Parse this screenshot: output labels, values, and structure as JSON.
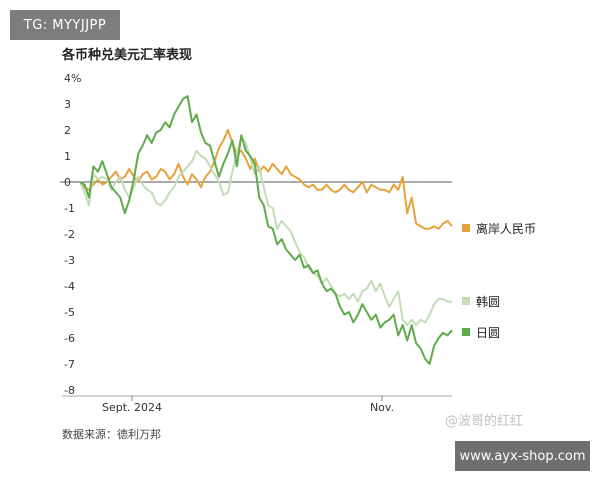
{
  "watermarks": {
    "top": "TG: MYYJJPP",
    "middle": "@波哥的红红",
    "bottom": "www.ayx-shop.com"
  },
  "chart_data": {
    "type": "line",
    "title": "各币种兑美元汇率表现",
    "source": "数据来源：德利万邦",
    "y_unit": "%",
    "ylim": [
      -8,
      4
    ],
    "y_ticks": [
      "4%",
      "3",
      "2",
      "1",
      "0",
      "-1",
      "-2",
      "-3",
      "-4",
      "-5",
      "-6",
      "-7",
      "-8"
    ],
    "x_ticks": [
      "Sept. 2024",
      "Nov."
    ],
    "grid": "horizontal-zero-line",
    "legend_placement": "right",
    "series": [
      {
        "name": "离岸人民币",
        "color": "#e7a23b",
        "values": [
          0,
          -0.2,
          -0.3,
          -0.1,
          0.1,
          -0.1,
          0,
          0.2,
          0.4,
          0.1,
          0.2,
          0.5,
          0.2,
          0,
          0.3,
          0.4,
          0.1,
          0.2,
          0.5,
          0.4,
          0.1,
          0.3,
          0.7,
          0.2,
          -0.1,
          0.3,
          0.1,
          -0.2,
          0.2,
          0.4,
          0.8,
          1.3,
          1.6,
          2,
          1.5,
          1.1,
          1.2,
          0.9,
          0.5,
          0.9,
          0.4,
          0.6,
          0.4,
          0.7,
          0.5,
          0.3,
          0.6,
          0.3,
          0.2,
          0.1,
          -0.1,
          -0.2,
          -0.1,
          -0.3,
          -0.3,
          -0.1,
          -0.3,
          -0.4,
          -0.3,
          -0.1,
          -0.3,
          -0.4,
          -0.2,
          0,
          -0.4,
          -0.1,
          -0.2,
          -0.3,
          -0.3,
          -0.4,
          -0.1,
          -0.3,
          0.2,
          -1.2,
          -0.6,
          -1.6,
          -1.7,
          -1.8,
          -1.8,
          -1.7,
          -1.8,
          -1.6,
          -1.5,
          -1.7
        ]
      },
      {
        "name": "韩圆",
        "color": "#c3dcb8",
        "values": [
          0,
          -0.4,
          -0.9,
          0.3,
          0.1,
          0.2,
          0.1,
          -0.3,
          0,
          0.2,
          -0.3,
          -0.6,
          -0.2,
          0.2,
          -0.1,
          -0.3,
          -0.4,
          -0.8,
          -0.9,
          -0.7,
          -0.4,
          -0.2,
          0.2,
          0.4,
          0.6,
          0.8,
          1.2,
          1,
          0.9,
          0.6,
          0.3,
          0,
          -0.5,
          -0.4,
          0.4,
          1.1,
          1.7,
          1.5,
          0.9,
          0.3,
          0.6,
          -0.2,
          -0.9,
          -1,
          -1.8,
          -1.5,
          -1.7,
          -1.9,
          -2.3,
          -2.7,
          -2.9,
          -3.3,
          -3.5,
          -3.6,
          -3.9,
          -3.7,
          -4,
          -4.3,
          -4.4,
          -4.3,
          -4.5,
          -4.3,
          -4.6,
          -4.2,
          -4.1,
          -3.8,
          -4.2,
          -3.9,
          -4.4,
          -4.8,
          -4.5,
          -4.2,
          -5.3,
          -5.5,
          -5.3,
          -5.5,
          -5.3,
          -5.4,
          -5.1,
          -4.7,
          -4.5,
          -4.5,
          -4.6,
          -4.6
        ]
      },
      {
        "name": "日圆",
        "color": "#5faa4a",
        "values": [
          0,
          -0.1,
          -0.6,
          0.6,
          0.4,
          0.8,
          0.3,
          -0.2,
          -0.4,
          -0.6,
          -1.2,
          -0.7,
          0.1,
          1.1,
          1.4,
          1.8,
          1.5,
          1.9,
          2,
          2.3,
          2.1,
          2.6,
          2.9,
          3.2,
          3.3,
          2.3,
          2.6,
          1.9,
          1.5,
          1.4,
          0.8,
          0.2,
          0.7,
          1.1,
          1.6,
          0.6,
          1.8,
          1.2,
          1,
          0.7,
          -0.6,
          -0.9,
          -1.7,
          -1.8,
          -2.4,
          -2.2,
          -2.6,
          -2.8,
          -3,
          -2.8,
          -3.3,
          -3.2,
          -3.5,
          -3.4,
          -3.9,
          -4.2,
          -4.1,
          -4.3,
          -4.8,
          -5.1,
          -5.0,
          -5.4,
          -5.1,
          -4.7,
          -5.0,
          -5.3,
          -5.1,
          -5.6,
          -5.4,
          -5.3,
          -5.1,
          -5.9,
          -5.5,
          -6.1,
          -5.5,
          -6.2,
          -6.4,
          -6.8,
          -7,
          -6.3,
          -6,
          -5.8,
          -5.9,
          -5.7
        ]
      }
    ]
  }
}
